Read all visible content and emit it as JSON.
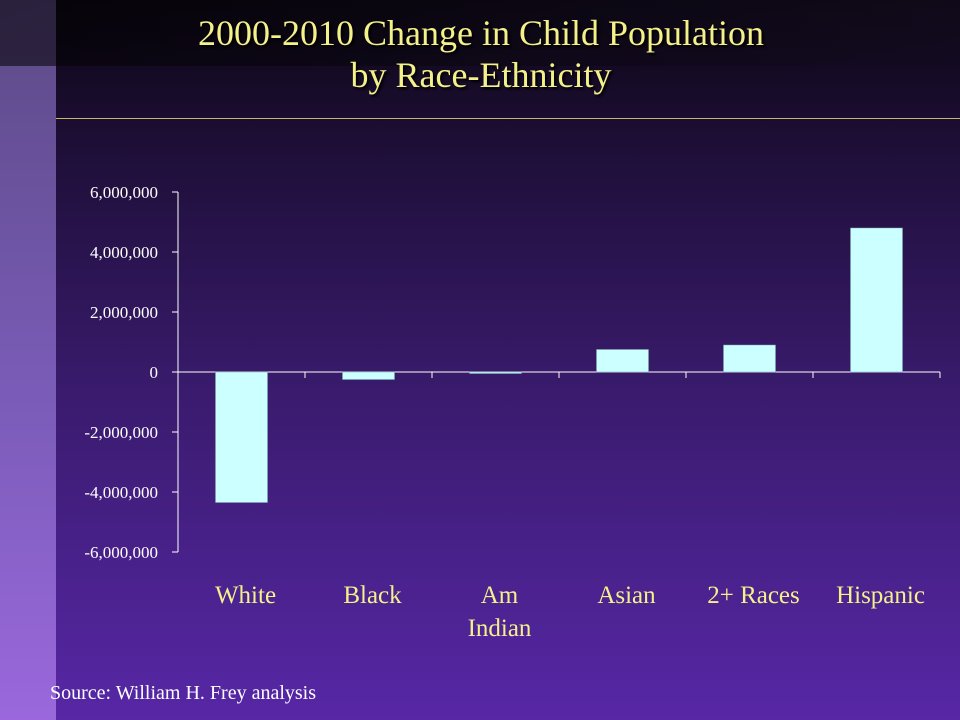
{
  "title": {
    "line1": "2000-2010 Change in Child Population",
    "line2": "by Race-Ethnicity"
  },
  "source": "Source: William H. Frey analysis",
  "colors": {
    "title": "#f4f08a",
    "bar": "#ccffff",
    "axis": "#ffffff",
    "category_labels": "#f4f08a"
  },
  "chart_data": {
    "type": "bar",
    "categories": [
      "White",
      "Black",
      "Am Indian",
      "Asian",
      "2+ Races",
      "Hispanic"
    ],
    "category_label_lines": [
      [
        "White"
      ],
      [
        "Black"
      ],
      [
        "Am",
        "Indian"
      ],
      [
        "Asian"
      ],
      [
        "2+ Races"
      ],
      [
        "Hispanic"
      ]
    ],
    "values": [
      -4350000,
      -250000,
      -50000,
      750000,
      900000,
      4800000
    ],
    "ylim": [
      -6000000,
      6000000
    ],
    "yticks": [
      6000000,
      4000000,
      2000000,
      0,
      -2000000,
      -4000000,
      -6000000
    ],
    "ytick_labels": [
      "6,000,000",
      "4,000,000",
      "2,000,000",
      "0",
      "-2,000,000",
      "-4,000,000",
      "-6,000,000"
    ],
    "grid": false,
    "legend": false
  }
}
